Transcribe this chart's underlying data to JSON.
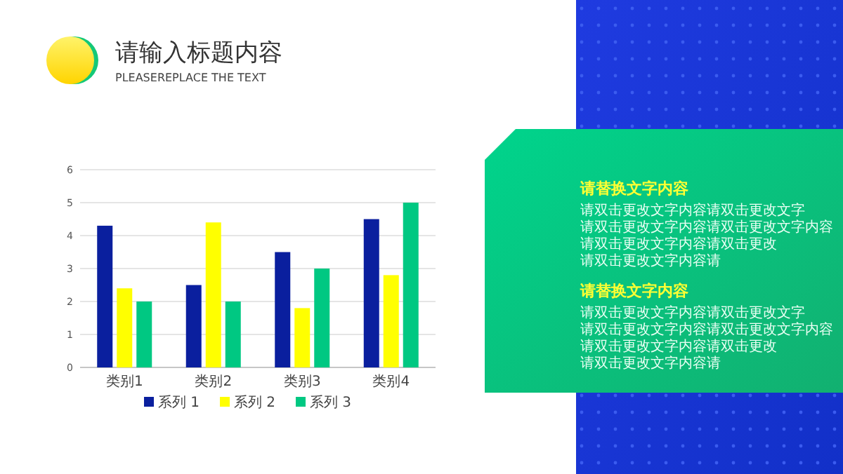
{
  "chart_data": [
    {
      "type": "bar",
      "title": "请输入标题内容",
      "subtitle": "PLEASEREPLACE THE TEXT",
      "categories": [
        "类别1",
        "类别2",
        "类别3",
        "类别4"
      ],
      "series": [
        {
          "name": "系列 1",
          "color": "#0a1f9e",
          "values": [
            4.3,
            2.5,
            3.5,
            4.5
          ]
        },
        {
          "name": "系列 2",
          "color": "#ffff00",
          "values": [
            2.4,
            4.4,
            1.8,
            2.8
          ]
        },
        {
          "name": "系列 3",
          "color": "#00c882",
          "values": [
            2,
            2,
            3,
            5
          ]
        }
      ],
      "ylim": [
        0,
        6
      ],
      "yticks": [
        0,
        1,
        2,
        3,
        4,
        5,
        6
      ],
      "grid": "y",
      "legend": "bottom"
    },
    {
      "type": "other",
      "annotations": [
        "请替换文字内容",
        "请双击更改文字内容请双击更改文字",
        "请双击更改文字内容请双击更改文字内容",
        "请双击更改文字内容请双击更改",
        "请双击更改文字内容请",
        "请替换文字内容",
        "请双击更改文字内容请双击更改文字",
        "请双击更改文字内容请双击更改文字内容",
        "请双击更改文字内容请双击更改",
        "请双击更改文字内容请"
      ]
    }
  ]
}
